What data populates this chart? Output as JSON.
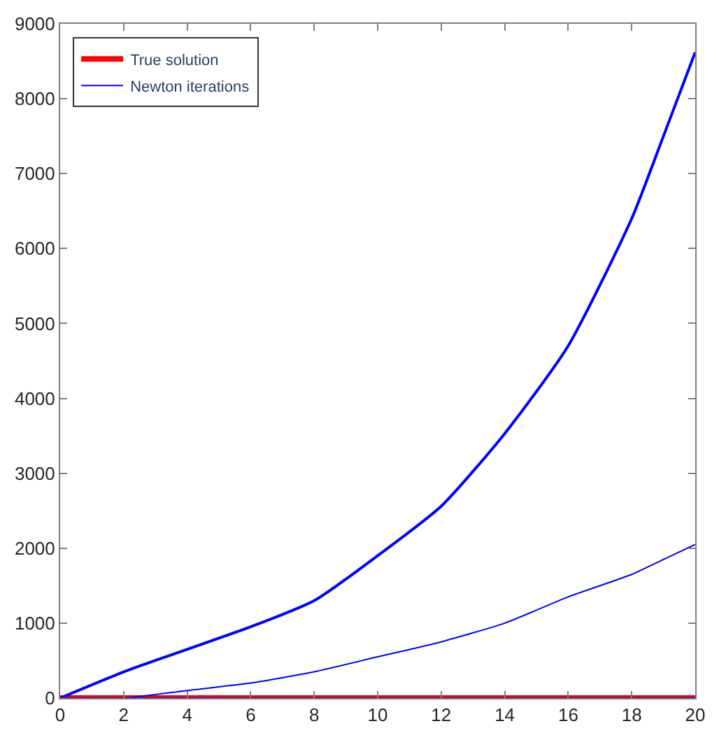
{
  "chart_data": {
    "type": "line",
    "x": [
      0,
      2,
      4,
      6,
      8,
      10,
      12,
      14,
      16,
      18,
      19,
      20
    ],
    "series": [
      {
        "name": "True solution",
        "color": "#ff0000",
        "values": [
          0,
          0,
          0,
          0,
          0,
          0,
          0,
          0,
          0,
          0,
          0,
          0
        ]
      },
      {
        "name": "Newton iterations",
        "color": "#0000ff",
        "values": [
          0,
          0,
          100,
          200,
          350,
          550,
          750,
          1000,
          1350,
          1650,
          1850,
          2050
        ]
      },
      {
        "color": "#0000ff",
        "values": [
          0,
          350,
          650,
          950,
          1300,
          1900,
          2560,
          3530,
          4700,
          6400,
          7500,
          8620
        ]
      },
      {
        "color": "#800080",
        "values": [
          0,
          0,
          0,
          0,
          0,
          0,
          0,
          0,
          0,
          0,
          0,
          0
        ]
      }
    ],
    "xlim": [
      0,
      20
    ],
    "xticks": [
      0,
      2,
      4,
      6,
      8,
      10,
      12,
      14,
      16,
      18,
      20
    ],
    "ylim": [
      0,
      9000
    ],
    "yticks": [
      0,
      1000,
      2000,
      3000,
      4000,
      5000,
      6000,
      7000,
      8000,
      9000
    ],
    "grid": false,
    "legend": "top left",
    "marker": "none",
    "line_style": "solid"
  }
}
